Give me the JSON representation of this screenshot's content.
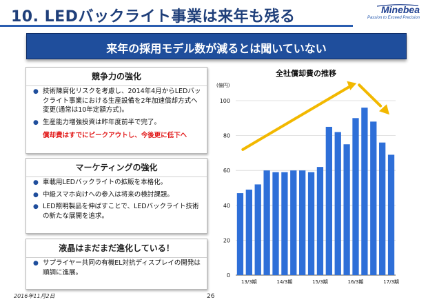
{
  "header": {
    "title": "10. LEDバックライト事業は来年も残る",
    "logo_name": "Minebea",
    "logo_tagline": "Passion to Exceed Precision"
  },
  "banner": {
    "text": "来年の採用モデル数が減るとは聞いていない"
  },
  "panels": [
    {
      "heading": "競争力の強化",
      "bullets": [
        "技術陳腐化リスクを考慮し、2014年4月からLEDバックライト事業における生産設備を2年加速償却方式へ変更(通常は10年定額方式)。",
        "生産能力増強投資は昨年度前半で完了。"
      ],
      "highlight": "償却費はすでにピークアウトし、今後更に低下へ"
    },
    {
      "heading": "マーケティングの強化",
      "bullets": [
        "車載用LEDバックライトの拡販を本格化。",
        "中級スマホ向けへの参入は将来の検討課題。",
        "LED照明製品を伸ばすことで、LEDバックライト技術の新たな展開を追求。"
      ]
    },
    {
      "heading": "液晶はまだまだ進化している！",
      "bullets": [
        "サプライヤー共同の有機EL対抗ディスプレイの開発は順調に進展。"
      ]
    }
  ],
  "footer": {
    "date": "2016年11月2日",
    "page": "26"
  },
  "colors": {
    "bar": "#2e6fd8",
    "arrow": "#f2b800",
    "accent": "#1f4e9c",
    "red": "#e21b1b"
  },
  "chart_data": {
    "type": "bar",
    "title": "全社償却費の推移",
    "unit_label": "(億円)",
    "ylim": [
      0,
      100
    ],
    "yticks": [
      0,
      20,
      40,
      60,
      80,
      100
    ],
    "x_labels": [
      "13/3期",
      "14/3期",
      "15/3期",
      "16/3期",
      "17/3期"
    ],
    "x_label_positions": [
      1.5,
      5.5,
      9.5,
      13.5,
      17.5
    ],
    "values": [
      47,
      49,
      52,
      60,
      59,
      59,
      60,
      60,
      59,
      62,
      85,
      82,
      75,
      90,
      96,
      88,
      76,
      69
    ]
  }
}
